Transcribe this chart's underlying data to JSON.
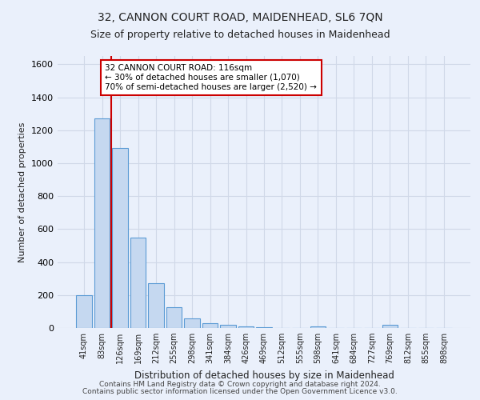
{
  "title1": "32, CANNON COURT ROAD, MAIDENHEAD, SL6 7QN",
  "title2": "Size of property relative to detached houses in Maidenhead",
  "xlabel": "Distribution of detached houses by size in Maidenhead",
  "ylabel": "Number of detached properties",
  "bin_labels": [
    "41sqm",
    "83sqm",
    "126sqm",
    "169sqm",
    "212sqm",
    "255sqm",
    "298sqm",
    "341sqm",
    "384sqm",
    "426sqm",
    "469sqm",
    "512sqm",
    "555sqm",
    "598sqm",
    "641sqm",
    "684sqm",
    "727sqm",
    "769sqm",
    "812sqm",
    "855sqm",
    "898sqm"
  ],
  "bin_values": [
    200,
    1270,
    1090,
    550,
    270,
    125,
    60,
    30,
    20,
    10,
    5,
    0,
    0,
    10,
    0,
    0,
    0,
    20,
    0,
    0,
    0
  ],
  "bar_color": "#c5d8f0",
  "bar_edge_color": "#5b9bd5",
  "red_line_index": 1.5,
  "red_line_color": "#cc0000",
  "annotation_text": "32 CANNON COURT ROAD: 116sqm\n← 30% of detached houses are smaller (1,070)\n70% of semi-detached houses are larger (2,520) →",
  "annotation_box_color": "#ffffff",
  "annotation_box_edge": "#cc0000",
  "ylim": [
    0,
    1650
  ],
  "yticks": [
    0,
    200,
    400,
    600,
    800,
    1000,
    1200,
    1400,
    1600
  ],
  "footer1": "Contains HM Land Registry data © Crown copyright and database right 2024.",
  "footer2": "Contains public sector information licensed under the Open Government Licence v3.0.",
  "background_color": "#eaf0fb",
  "grid_color": "#d0d8e8",
  "title1_fontsize": 10,
  "title2_fontsize": 9
}
